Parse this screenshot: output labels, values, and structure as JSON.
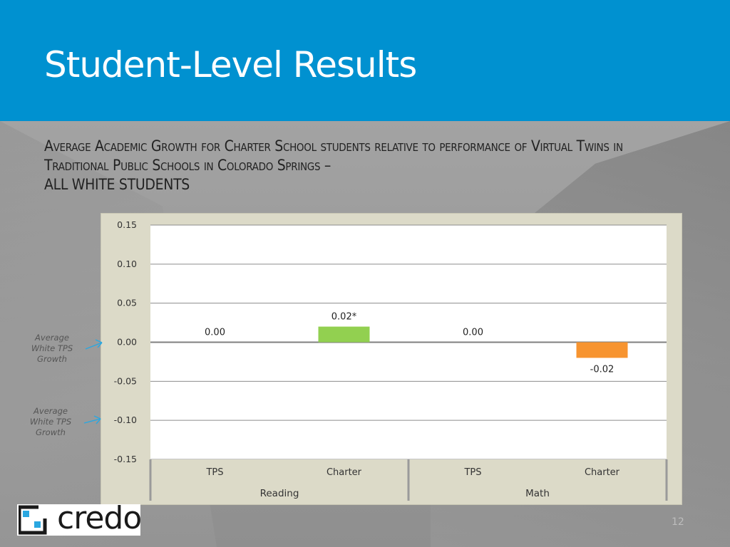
{
  "slide": {
    "title": "Student-Level Results",
    "subtitle_line1": "Average Academic Growth for Charter School students relative to performance of Virtual Twins in Traditional Public Schools in Colorado Springs –",
    "subtitle_line2": "ALL WHITE STUDENTS",
    "page_number": "12"
  },
  "annotations": [
    {
      "text_line1": "Average",
      "text_line2": "White TPS",
      "text_line3": "Growth"
    },
    {
      "text_line1": "Average",
      "text_line2": "White TPS",
      "text_line3": "Growth"
    }
  ],
  "logo": {
    "text": "credo"
  },
  "colors": {
    "header": "#0091d0",
    "charter_positive": "#92d050",
    "charter_negative": "#f79430",
    "arrow": "#2aa7e0"
  },
  "chart_data": {
    "type": "bar",
    "ylim": [
      -0.15,
      0.15
    ],
    "yticks": [
      "0.15",
      "0.10",
      "0.05",
      "0.00",
      "-0.05",
      "-0.10",
      "-0.15"
    ],
    "ytick_values": [
      0.15,
      0.1,
      0.05,
      0.0,
      -0.05,
      -0.1,
      -0.15
    ],
    "groups": [
      "Reading",
      "Math"
    ],
    "categories": [
      "TPS",
      "Charter",
      "TPS",
      "Charter"
    ],
    "values": [
      0.0,
      0.02,
      0.0,
      -0.02
    ],
    "data_labels": [
      "0.00",
      "0.02*",
      "0.00",
      "-0.02"
    ],
    "grid": true
  }
}
